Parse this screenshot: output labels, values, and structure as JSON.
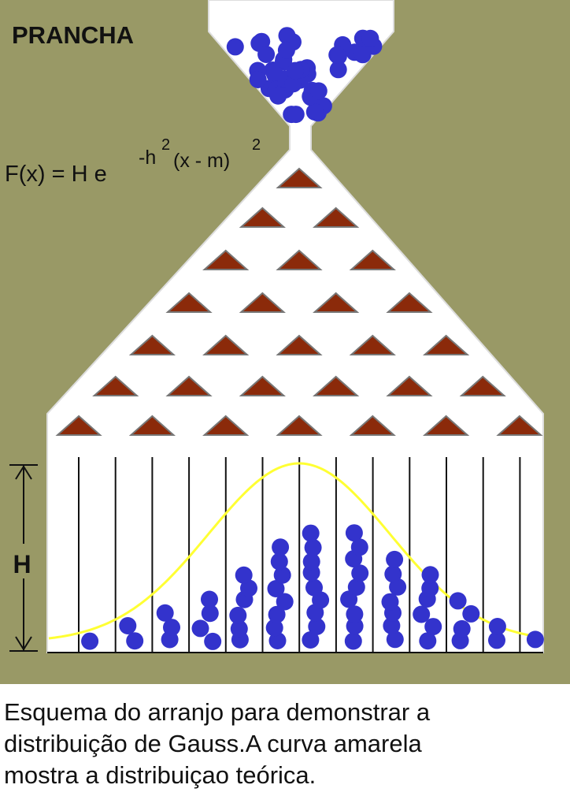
{
  "title": "PRANCHA",
  "formula": {
    "lhs": "F(x) = H e",
    "exp_base": "-h",
    "exp_power1": "2",
    "exp_rest": "(x - m)",
    "exp_power2": "2"
  },
  "height_label": "H",
  "caption": [
    "Esquema do arranjo para demonstrar a",
    "distribuição de Gauss.A curva amarela",
    "mostra a distribuiçao teórica."
  ]
}
